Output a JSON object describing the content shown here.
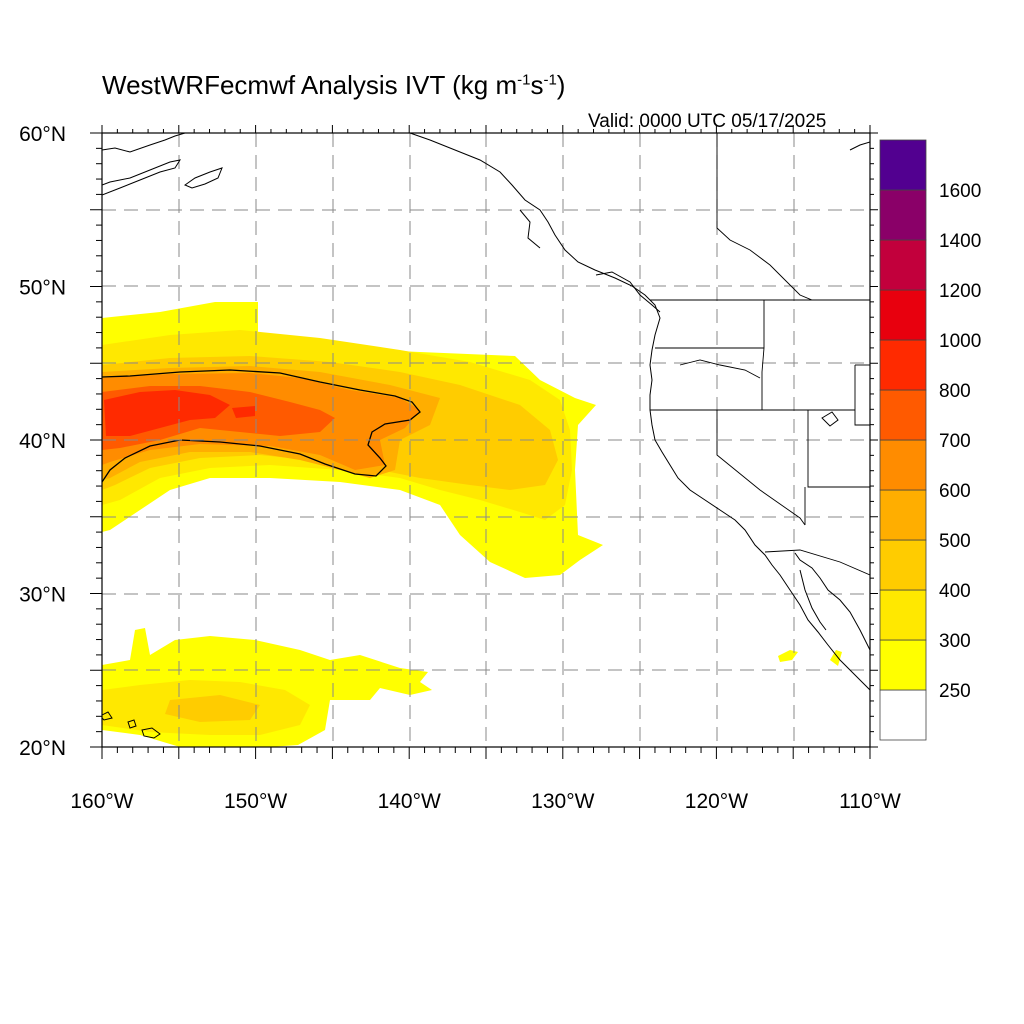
{
  "title": {
    "main": "WestWRFecmwf Analysis IVT (kg m",
    "exp1": "-1",
    "mid": "s",
    "exp2": "-1",
    "close": ")"
  },
  "valid_label": "Valid: 0000 UTC 05/17/2025",
  "map": {
    "lon_range": [
      -160,
      -110
    ],
    "lat_range": [
      20,
      60
    ],
    "grid_lines": true,
    "lon_ticks": [
      {
        "value": -160,
        "label": "160°W"
      },
      {
        "value": -150,
        "label": "150°W"
      },
      {
        "value": -140,
        "label": "140°W"
      },
      {
        "value": -130,
        "label": "130°W"
      },
      {
        "value": -120,
        "label": "120°W"
      },
      {
        "value": -110,
        "label": "110°W"
      }
    ],
    "lat_ticks": [
      {
        "value": 60,
        "label": "60°N"
      },
      {
        "value": 50,
        "label": "50°N"
      },
      {
        "value": 40,
        "label": "40°N"
      },
      {
        "value": 30,
        "label": "30°N"
      },
      {
        "value": 20,
        "label": "20°N"
      }
    ]
  },
  "colorbar": {
    "levels": [
      {
        "label": "",
        "color": "#ffffff"
      },
      {
        "label": "250",
        "color": "#ffff00"
      },
      {
        "label": "300",
        "color": "#ffe800"
      },
      {
        "label": "400",
        "color": "#ffcc00"
      },
      {
        "label": "500",
        "color": "#ffae00"
      },
      {
        "label": "600",
        "color": "#ff8c00"
      },
      {
        "label": "700",
        "color": "#ff5a00"
      },
      {
        "label": "800",
        "color": "#ff2a00"
      },
      {
        "label": "1000",
        "color": "#e8000e"
      },
      {
        "label": "1200",
        "color": "#c2003c"
      },
      {
        "label": "1400",
        "color": "#8a0068"
      },
      {
        "label": "1600",
        "color": "#520090"
      }
    ]
  }
}
